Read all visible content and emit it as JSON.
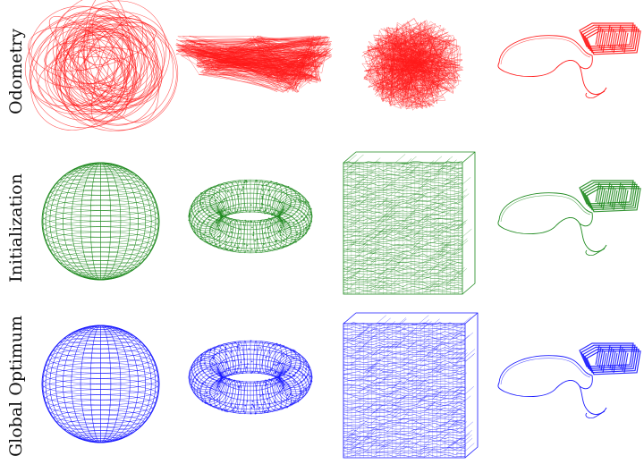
{
  "rows": [
    {
      "label": "Odometry",
      "color": "#ff1a1a"
    },
    {
      "label": "Initialization",
      "color": "#1f8a1f"
    },
    {
      "label": "Global Optimum",
      "color": "#1a1aff"
    }
  ],
  "columns": [
    "sphere-icon",
    "torus-icon",
    "cube-icon",
    "garage-icon"
  ]
}
